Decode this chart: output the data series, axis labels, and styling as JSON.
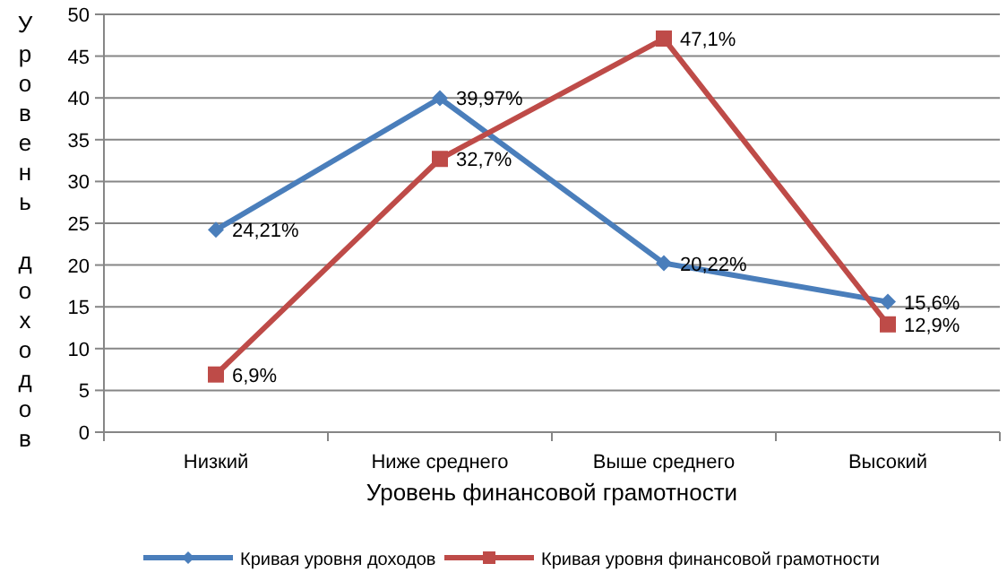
{
  "chart_data": {
    "type": "line",
    "xlabel": "Уровень финансовой грамотности",
    "ylabel": "Уровень доходов",
    "categories": [
      "Низкий",
      "Ниже среднего",
      "Выше среднего",
      "Высокий"
    ],
    "series": [
      {
        "name": "Кривая уровня доходов",
        "color": "#4a7ebb",
        "marker": "diamond",
        "values": [
          24.21,
          39.97,
          20.22,
          15.6
        ],
        "value_labels": [
          "24,21%",
          "39,97%",
          "20,22%",
          "15,6%"
        ]
      },
      {
        "name": "Кривая уровня финансовой грамотности",
        "color": "#be4b48",
        "marker": "square",
        "values": [
          6.9,
          32.7,
          47.1,
          12.9
        ],
        "value_labels": [
          "6,9%",
          "32,7%",
          "47,1%",
          "12,9%"
        ]
      }
    ],
    "ylim": [
      0,
      50
    ],
    "yticks": [
      0,
      5,
      10,
      15,
      20,
      25,
      30,
      35,
      40,
      45,
      50
    ],
    "grid": "y",
    "legend": "bottom",
    "line_style": "solid"
  }
}
